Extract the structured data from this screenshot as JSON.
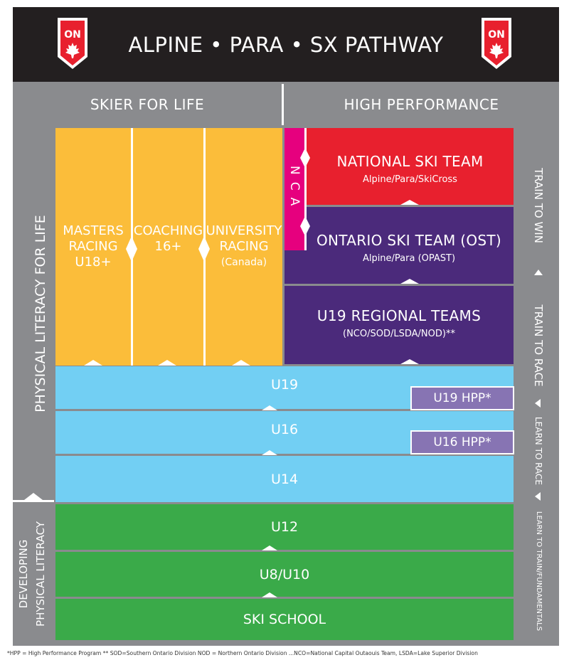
{
  "header": {
    "title": "ALPINE • PARA • SX PATHWAY",
    "logo_text": "ON"
  },
  "columns": {
    "left": "SKIER FOR LIFE",
    "right": "HIGH PERFORMANCE"
  },
  "side_labels": {
    "left_top": "PHYSICAL LITERACY FOR LIFE",
    "left_bottom_1": "DEVELOPING",
    "left_bottom_2": "PHYSICAL LITERACY",
    "right": [
      "TRAIN TO WIN",
      "TRAIN TO RACE",
      "LEARN TO RACE",
      "LEARN TO TRAIN/FUNDAMENTALS"
    ]
  },
  "skier_for_life": [
    {
      "line1": "MASTERS",
      "line2": "RACING",
      "line3": "U18+"
    },
    {
      "line1": "COACHING",
      "line2": "16+"
    },
    {
      "line1": "UNIVERSITY",
      "line2": "RACING",
      "line3": "(Canada)"
    }
  ],
  "high_performance": {
    "ncaa": "NCAA",
    "national": {
      "title": "NATIONAL SKI TEAM",
      "sub": "Alpine/Para/SkiCross"
    },
    "ost": {
      "title": "ONTARIO SKI TEAM (OST)",
      "sub": "Alpine/Para (OPAST)"
    },
    "regional": {
      "title": "U19 REGIONAL TEAMS",
      "sub": "(NCO/SOD/LSDA/NOD)**"
    }
  },
  "bands": {
    "u19": "U19",
    "u19_hpp": "U19 HPP*",
    "u16": "U16",
    "u16_hpp": "U16 HPP*",
    "u14": "U14",
    "u12": "U12",
    "u8_u10": "U8/U10",
    "ski_school": "SKI SCHOOL"
  },
  "footer": "*HPP = High Performance Program     ** SOD=Southern Ontario Division NOD = Northern Ontario Division ...NCO=National Capital Outaouis Team, LSDA=Lake Superior Division",
  "colors": {
    "header_bg": "#231f20",
    "frame_gray": "#8a8b8e",
    "yellow": "#fbbd3a",
    "national_red": "#e8202e",
    "ost_purple": "#4b2a7b",
    "ncaa_magenta": "#e6007e",
    "blue": "#72cff3",
    "green": "#3aaa49",
    "hpp_purple": "#8774b3"
  }
}
